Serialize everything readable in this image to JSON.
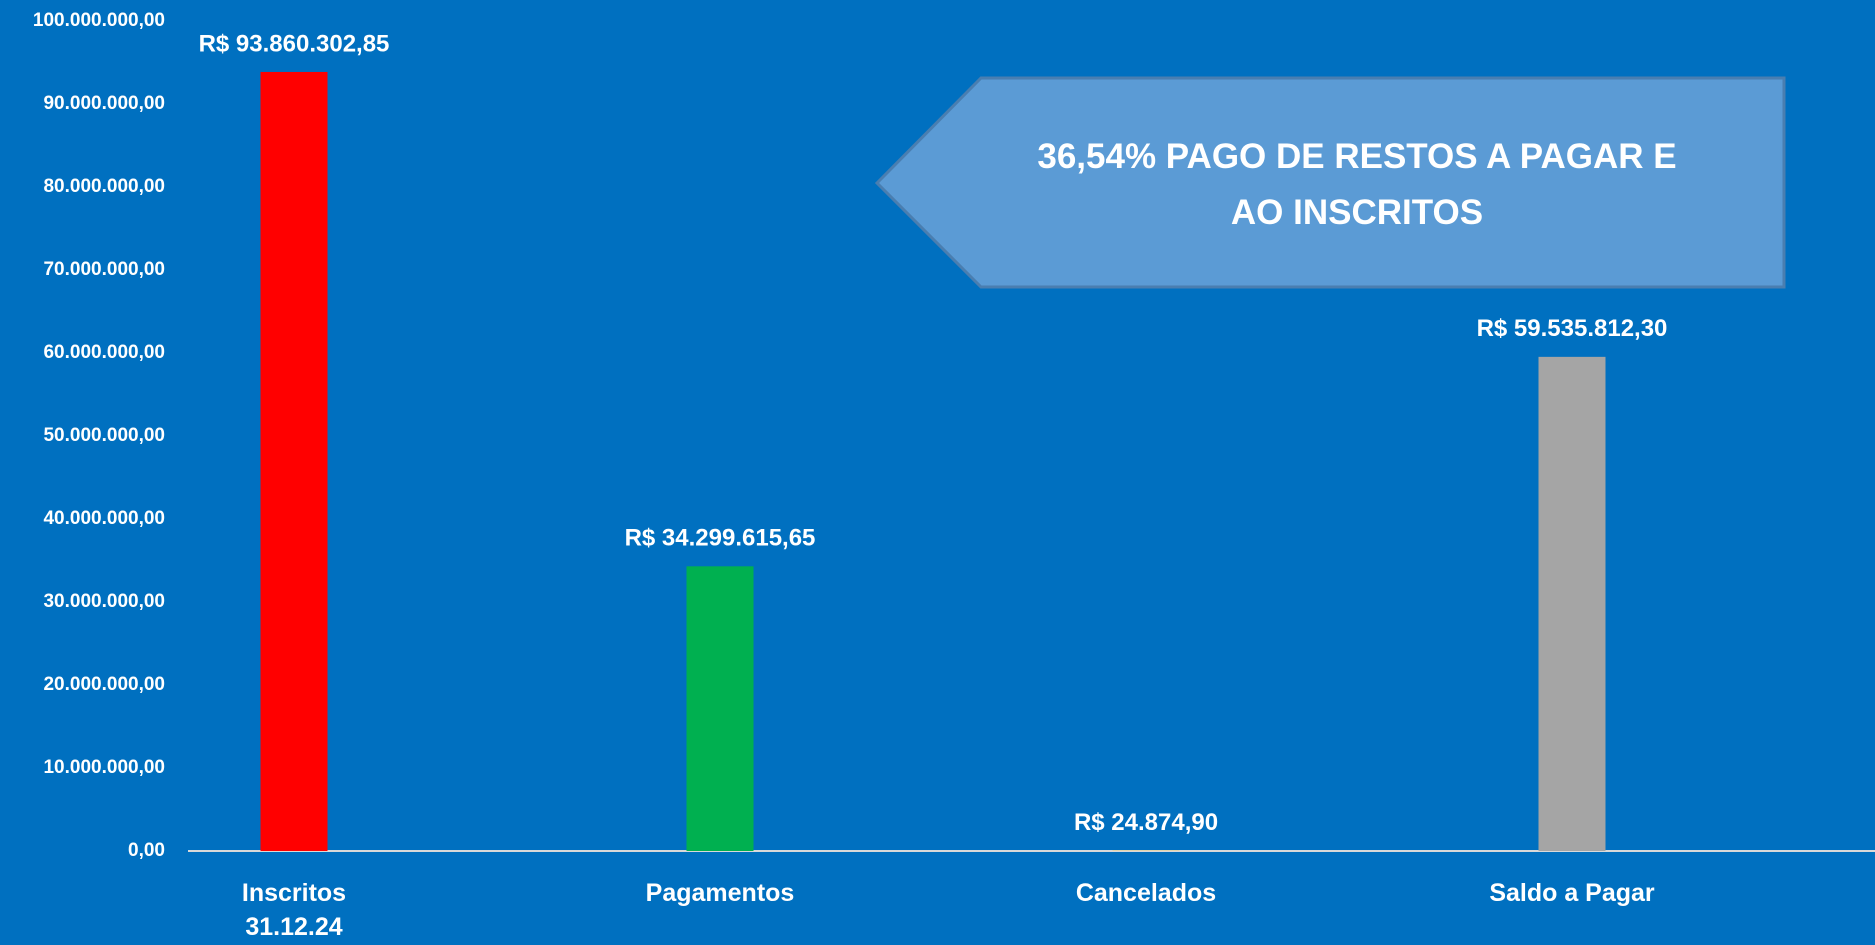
{
  "chart_data": {
    "type": "bar",
    "categories": [
      "Inscritos\n31.12.24",
      "Pagamentos",
      "Cancelados",
      "Saldo a Pagar"
    ],
    "values": [
      93860302.85,
      34299615.65,
      24874.9,
      59535812.3
    ],
    "value_labels": [
      "R$ 93.860.302,85",
      "R$ 34.299.615,65",
      "R$ 24.874,90",
      "R$ 59.535.812,30"
    ],
    "colors": [
      "#ff0000",
      "#00b050",
      "#ffc000",
      "#a5a5a5"
    ],
    "ylim": [
      0,
      100000000
    ],
    "yticks": [
      {
        "value": 0,
        "label": "0,00"
      },
      {
        "value": 10000000,
        "label": "10.000.000,00"
      },
      {
        "value": 20000000,
        "label": "20.000.000,00"
      },
      {
        "value": 30000000,
        "label": "30.000.000,00"
      },
      {
        "value": 40000000,
        "label": "40.000.000,00"
      },
      {
        "value": 50000000,
        "label": "50.000.000,00"
      },
      {
        "value": 60000000,
        "label": "60.000.000,00"
      },
      {
        "value": 70000000,
        "label": "70.000.000,00"
      },
      {
        "value": 80000000,
        "label": "80.000.000,00"
      },
      {
        "value": 90000000,
        "label": "90.000.000,00"
      },
      {
        "value": 100000000,
        "label": "100.000.000,00"
      }
    ],
    "annotation": "36,54% PAGO DE RESTOS A PAGAR  E\nAO INSCRITOS"
  }
}
